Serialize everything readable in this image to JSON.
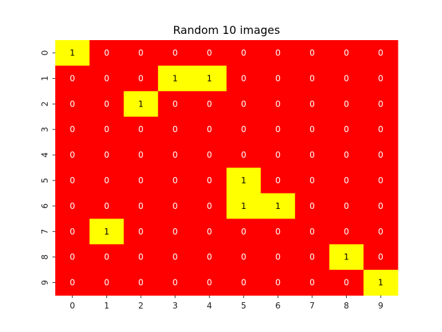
{
  "chart_data": {
    "type": "heatmap",
    "title": "Random 10 images",
    "xlabel": "",
    "ylabel": "",
    "x_categories": [
      "0",
      "1",
      "2",
      "3",
      "4",
      "5",
      "6",
      "7",
      "8",
      "9"
    ],
    "y_categories": [
      "0",
      "1",
      "2",
      "3",
      "4",
      "5",
      "6",
      "7",
      "8",
      "9"
    ],
    "values": [
      [
        1,
        0,
        0,
        0,
        0,
        0,
        0,
        0,
        0,
        0
      ],
      [
        0,
        0,
        0,
        1,
        1,
        0,
        0,
        0,
        0,
        0
      ],
      [
        0,
        0,
        1,
        0,
        0,
        0,
        0,
        0,
        0,
        0
      ],
      [
        0,
        0,
        0,
        0,
        0,
        0,
        0,
        0,
        0,
        0
      ],
      [
        0,
        0,
        0,
        0,
        0,
        0,
        0,
        0,
        0,
        0
      ],
      [
        0,
        0,
        0,
        0,
        0,
        1,
        0,
        0,
        0,
        0
      ],
      [
        0,
        0,
        0,
        0,
        0,
        1,
        1,
        0,
        0,
        0
      ],
      [
        0,
        1,
        0,
        0,
        0,
        0,
        0,
        0,
        0,
        0
      ],
      [
        0,
        0,
        0,
        0,
        0,
        0,
        0,
        0,
        1,
        0
      ],
      [
        0,
        0,
        0,
        0,
        0,
        0,
        0,
        0,
        0,
        1
      ]
    ],
    "value_colors": {
      "0": "#ff0000",
      "1": "#ffff00"
    },
    "annotation_colors": {
      "0": "#ffffff",
      "1": "#000000"
    },
    "annotated": true,
    "colorbar": false,
    "grid": false
  }
}
